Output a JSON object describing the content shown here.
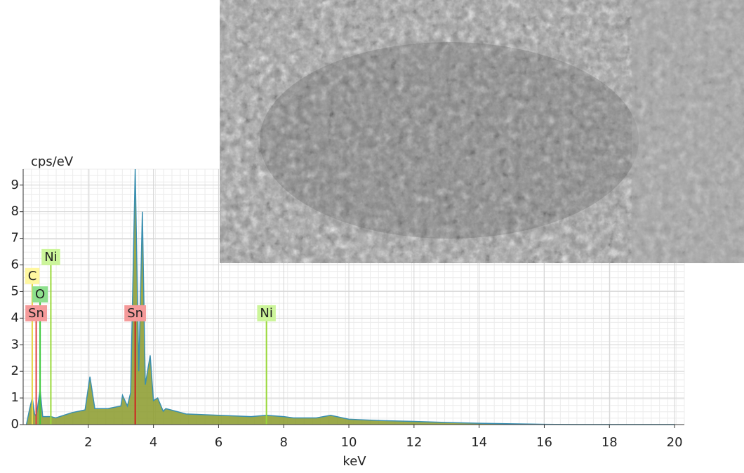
{
  "chart_data": {
    "type": "area",
    "y_label": "cps/eV",
    "x_label": "keV",
    "xlim": [
      0,
      20.3
    ],
    "ylim": [
      0,
      9.6
    ],
    "xticks": [
      2,
      4,
      6,
      8,
      10,
      12,
      14,
      16,
      18,
      20
    ],
    "yticks": [
      0,
      1,
      2,
      3,
      4,
      5,
      6,
      7,
      8,
      9
    ],
    "grid": true,
    "series": [
      {
        "color": "#8a9a2a",
        "line_color": "#3a8fb0",
        "x": [
          0.1,
          0.2,
          0.28,
          0.35,
          0.4,
          0.52,
          0.6,
          0.85,
          1.0,
          1.5,
          1.9,
          2.05,
          2.2,
          2.6,
          3.0,
          3.05,
          3.2,
          3.3,
          3.44,
          3.55,
          3.66,
          3.75,
          3.9,
          4.0,
          4.13,
          4.3,
          4.38,
          5,
          6,
          7,
          7.47,
          8,
          8.3,
          9,
          9.44,
          10,
          11,
          12,
          13,
          14,
          15,
          16,
          17,
          20
        ],
        "values": [
          0,
          0.6,
          1.0,
          0.4,
          0.3,
          1.3,
          0.3,
          0.3,
          0.25,
          0.45,
          0.55,
          1.8,
          0.6,
          0.6,
          0.7,
          1.1,
          0.7,
          1.2,
          9.6,
          2.0,
          8.0,
          1.5,
          2.6,
          0.9,
          1.0,
          0.5,
          0.6,
          0.4,
          0.35,
          0.3,
          0.35,
          0.3,
          0.25,
          0.25,
          0.35,
          0.2,
          0.15,
          0.12,
          0.08,
          0.05,
          0.03,
          0.01,
          0,
          0
        ]
      }
    ],
    "markers": [
      {
        "label": "Ni",
        "energy": 0.85,
        "level": 6.28,
        "color": "#ccf59a",
        "line": "#9ad83a"
      },
      {
        "label": "C",
        "energy": 0.28,
        "level": 5.57,
        "color": "#fff7a0",
        "line": "#e8d84a"
      },
      {
        "label": "O",
        "energy": 0.52,
        "level": 4.88,
        "color": "#8ee08e",
        "line": "#3cc83c"
      },
      {
        "label": "Sn",
        "energy": 0.4,
        "level": 4.17,
        "color": "#f59a9a",
        "line": "#e04040"
      },
      {
        "label": "Sn",
        "energy": 3.44,
        "level": 4.17,
        "color": "#f59a9a",
        "line": "#d02020"
      },
      {
        "label": "Ni",
        "energy": 7.47,
        "level": 4.17,
        "color": "#ccf59a",
        "line": "#9ad83a"
      }
    ]
  }
}
